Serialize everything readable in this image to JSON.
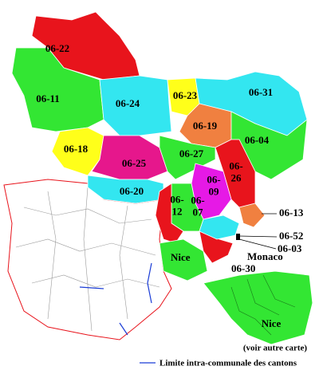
{
  "map": {
    "regions": [
      {
        "lines": [
          "06-22"
        ],
        "color": "#e8141c"
      },
      {
        "lines": [
          "06-11"
        ],
        "color": "#33e633"
      },
      {
        "lines": [
          "06-24"
        ],
        "color": "#33e6f0"
      },
      {
        "lines": [
          "06-23"
        ],
        "color": "#ffff1a"
      },
      {
        "lines": [
          "06-31"
        ],
        "color": "#33e6f0"
      },
      {
        "lines": [
          "06-19"
        ],
        "color": "#f08040"
      },
      {
        "lines": [
          "06-04"
        ],
        "color": "#33e633"
      },
      {
        "lines": [
          "06-18"
        ],
        "color": "#ffff1a"
      },
      {
        "lines": [
          "06-25"
        ],
        "color": "#e6178c"
      },
      {
        "lines": [
          "06-27"
        ],
        "color": "#33e633"
      },
      {
        "lines": [
          "06-",
          "26"
        ],
        "color": "#e8141c"
      },
      {
        "lines": [
          "06-20"
        ],
        "color": "#33e6f0"
      },
      {
        "lines": [
          "06-",
          "09"
        ],
        "color": "#e619e6"
      },
      {
        "lines": [
          "06-",
          "07"
        ],
        "color": "#33e633"
      },
      {
        "lines": [
          "06-",
          "12"
        ],
        "color": "#e8141c"
      }
    ],
    "annotations": [
      "06-13",
      "06-52",
      "06-03",
      "Monaco",
      "Nice",
      "06-30"
    ],
    "inset": {
      "label": "Nice",
      "note": "(voir autre carte)"
    },
    "legend": "Limite intra-communale des cantons"
  }
}
